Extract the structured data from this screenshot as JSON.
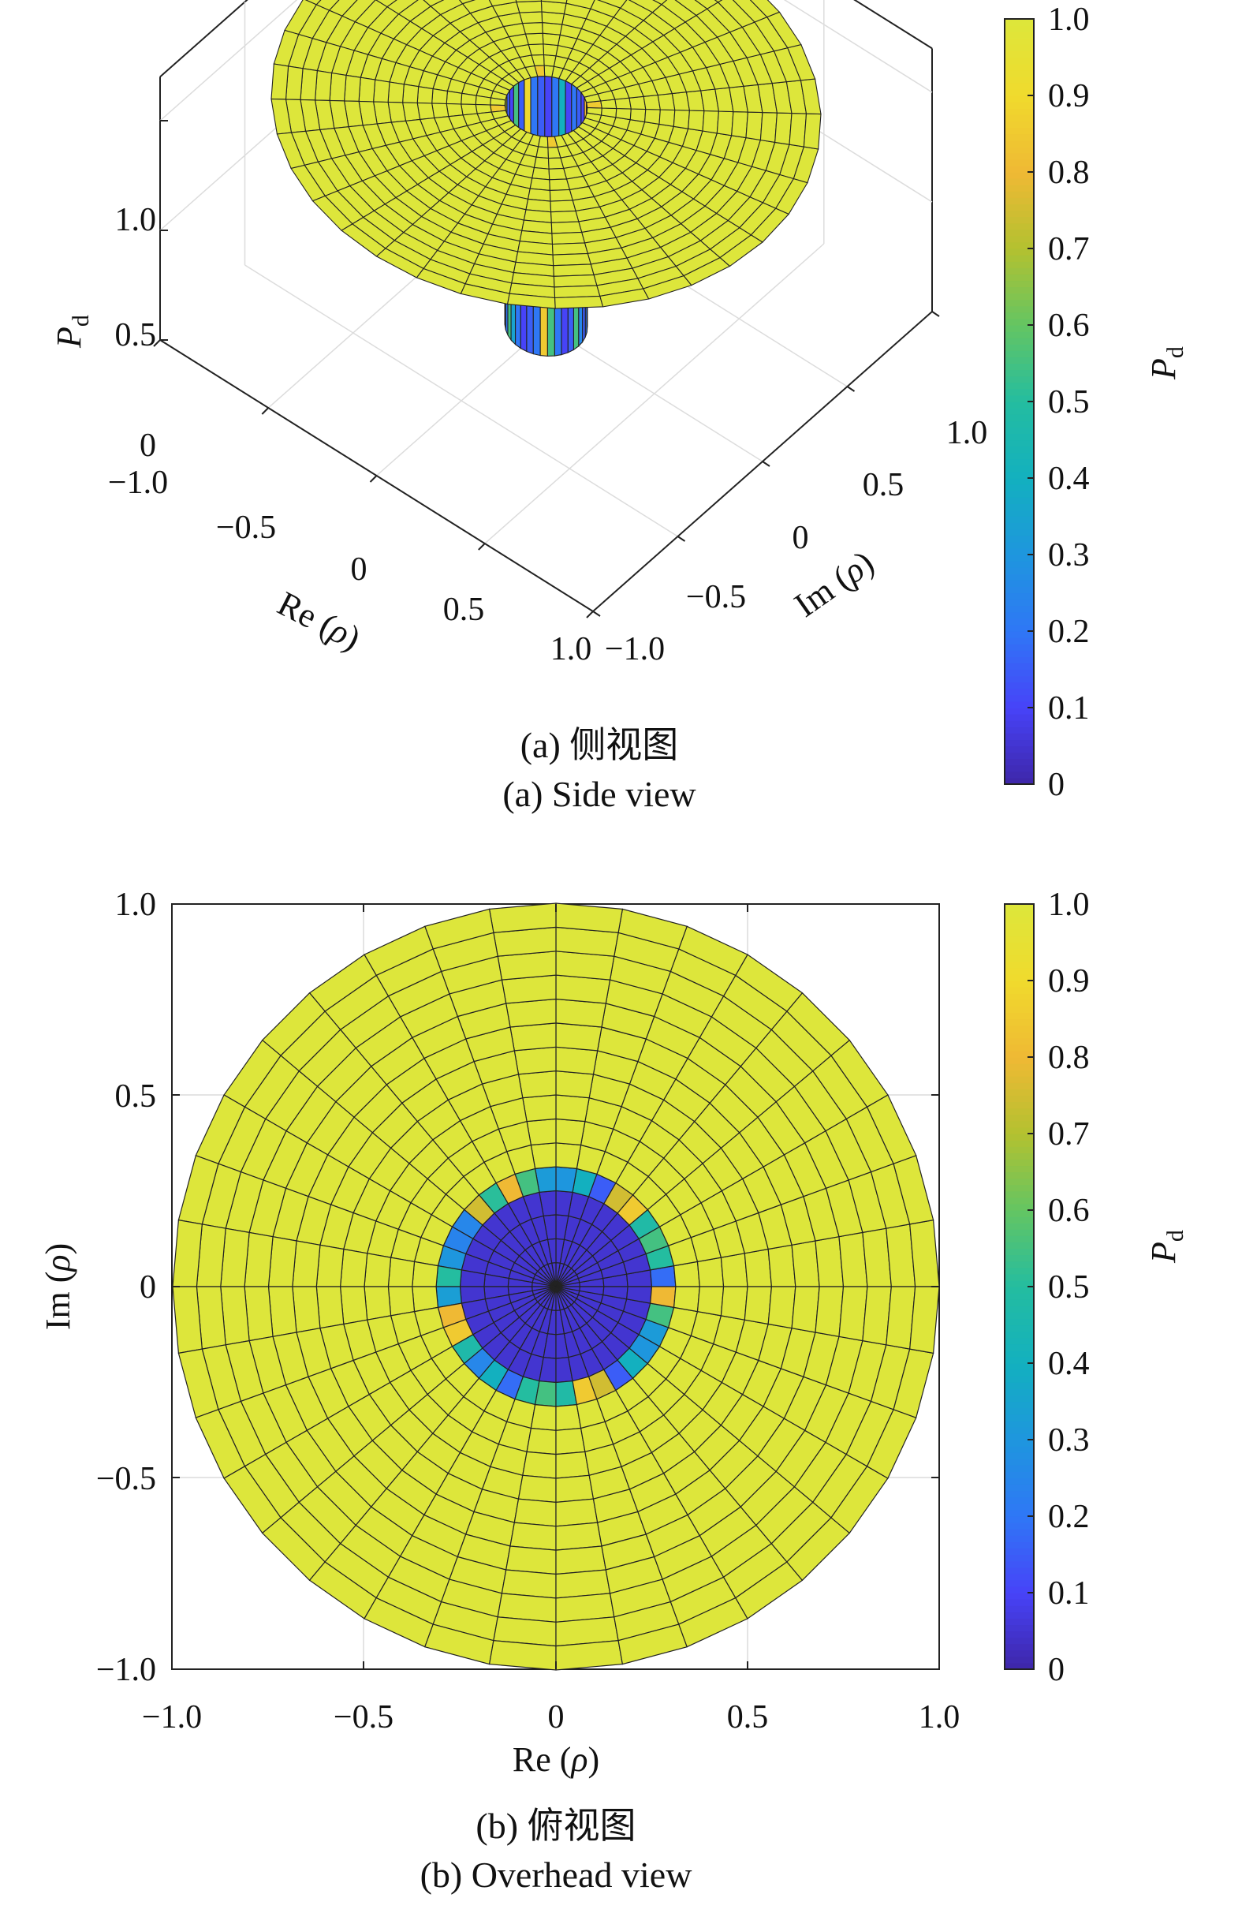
{
  "colormap": {
    "name": "parula",
    "stops": [
      "#3e26a8",
      "#4743f8",
      "#2f77f6",
      "#1e96de",
      "#13b0bf",
      "#24bda0",
      "#64c562",
      "#b3c130",
      "#efb934",
      "#f0da2d",
      "#dde63b"
    ],
    "mesh_color": "#222222",
    "axis_color": "#222222",
    "grid_color": "#dcdcdc"
  },
  "panels": {
    "side": {
      "caption_zh": "(a) 侧视图",
      "caption_en": "(a) Side view",
      "zlabel_sym": "P",
      "zlabel_sub": "d",
      "re_label_pre": "Re (",
      "im_label_pre": "Im (",
      "rho": "ρ",
      "label_post": ")",
      "z_ticks": [
        "0",
        "0.5",
        "1.0"
      ],
      "re_ticks": [
        "−1.0",
        "−0.5",
        "0",
        "0.5",
        "1.0"
      ],
      "im_ticks": [
        "−1.0",
        "−0.5",
        "0",
        "0.5",
        "1.0"
      ]
    },
    "top": {
      "caption_zh": "(b) 俯视图",
      "caption_en": "(b) Overhead view",
      "x_ticks": [
        "−1.0",
        "−0.5",
        "0",
        "0.5",
        "1.0"
      ],
      "y_ticks": [
        "−1.0",
        "−0.5",
        "0",
        "0.5",
        "1.0"
      ],
      "xlabel_pre": "Re (",
      "ylabel_pre": "Im (",
      "rho": "ρ",
      "label_post": ")"
    }
  },
  "colorbar": {
    "label_sym": "P",
    "label_sub": "d",
    "ticks": [
      "0",
      "0.1",
      "0.2",
      "0.3",
      "0.4",
      "0.5",
      "0.6",
      "0.7",
      "0.8",
      "0.9",
      "1.0"
    ]
  },
  "chart_data": [
    {
      "type": "surface",
      "view": "3d",
      "domain": "unit disk in complex plane |ρ| ≤ 1",
      "xlabel": "Re (ρ)",
      "ylabel": "Im (ρ)",
      "zlabel": "P_d",
      "xlim": [
        -1,
        1
      ],
      "ylim": [
        -1,
        1
      ],
      "zlim": [
        0,
        1
      ],
      "colorbar": {
        "label": "P_d",
        "range": [
          0,
          1
        ]
      },
      "radial_rings": 16,
      "angular_sectors": 36,
      "description_values": {
        "outer_region_value": 1.0,
        "inner_radius": 0.15,
        "inner_region_value": 0.0,
        "transition_ring_values": [
          0.25,
          0.35,
          0.4,
          0.55,
          0.7,
          0.8,
          0.85,
          0.9
        ]
      }
    },
    {
      "type": "heatmap",
      "view": "top",
      "domain": "unit disk in complex plane |ρ| ≤ 1",
      "xlabel": "Re (ρ)",
      "ylabel": "Im (ρ)",
      "xlim": [
        -1,
        1
      ],
      "ylim": [
        -1,
        1
      ],
      "colorbar": {
        "label": "P_d",
        "range": [
          0,
          1
        ]
      },
      "radial_rings": 16,
      "angular_sectors": 36,
      "description_values": {
        "outer_region_value": 1.0,
        "inner_radius": 0.3,
        "inner_region_value": 0.05,
        "boundary_ring_values": [
          0.3,
          0.45,
          0.55,
          0.8,
          0.85,
          0.7,
          0.25,
          0.4
        ]
      }
    }
  ]
}
